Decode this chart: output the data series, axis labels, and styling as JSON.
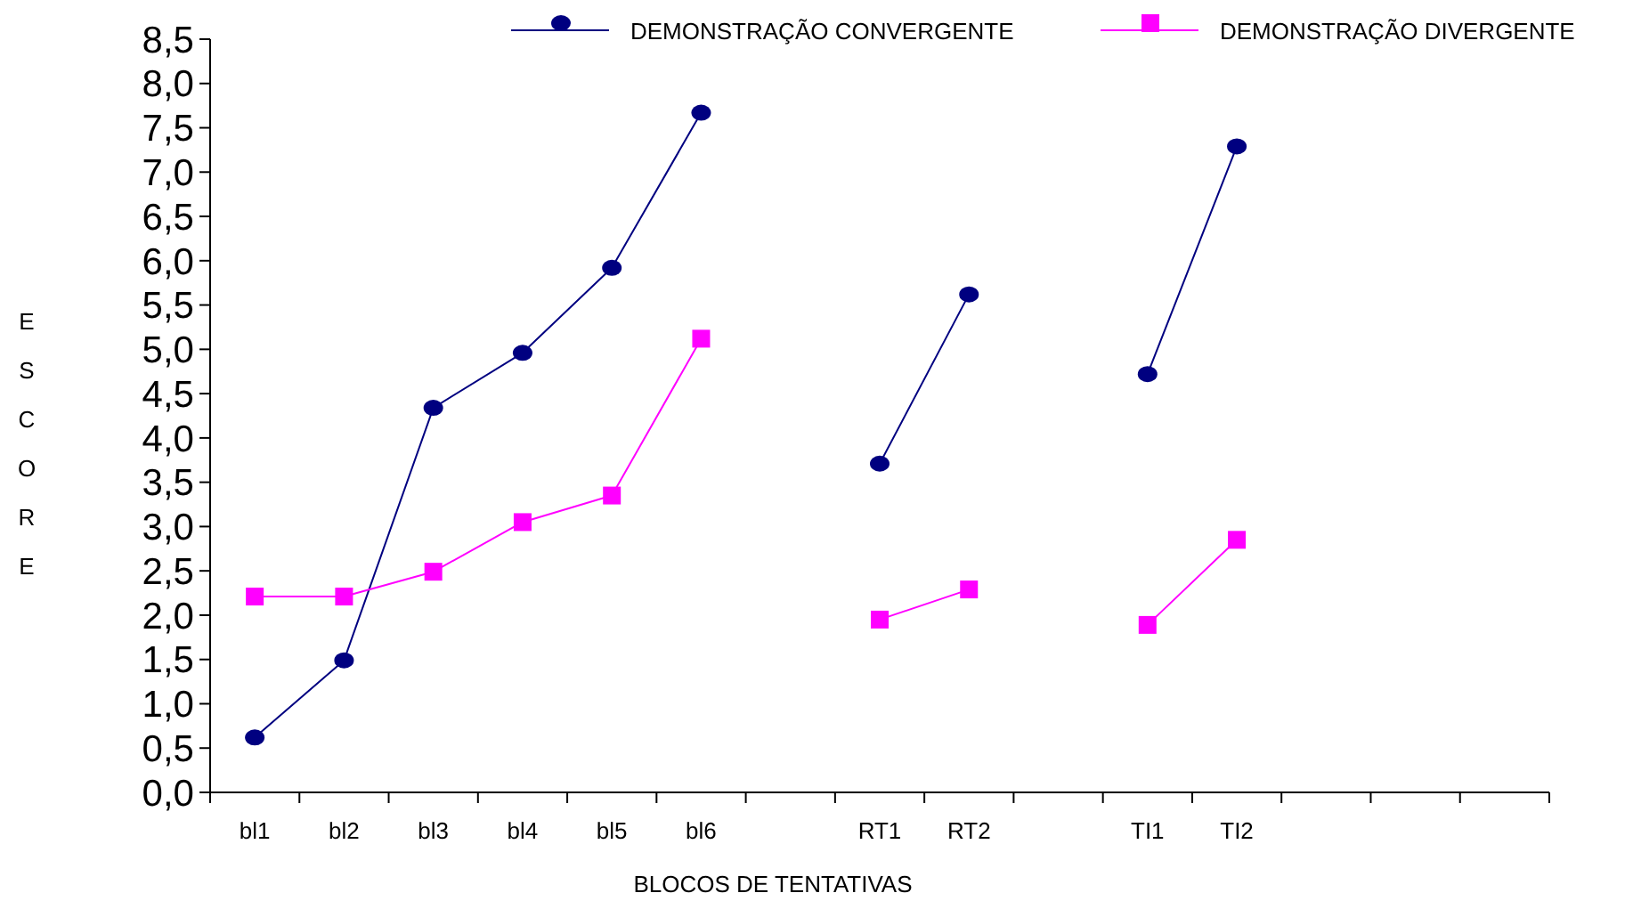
{
  "chart_data": {
    "type": "line",
    "xlabel": "BLOCOS DE TENTATIVAS",
    "ylabel": "ESCORE",
    "categories": [
      "bl1",
      "bl2",
      "bl3",
      "bl4",
      "bl5",
      "bl6",
      null,
      "RT1",
      "RT2",
      null,
      "TI1",
      "TI2",
      null,
      null,
      null
    ],
    "series": [
      {
        "name": "DEMONSTRAÇÃO CONVERGENTE",
        "color": "#000080",
        "marker": "circle",
        "values": [
          0.62,
          1.49,
          4.34,
          4.96,
          5.92,
          7.67,
          null,
          3.71,
          5.62,
          null,
          4.72,
          7.29,
          null,
          null,
          null
        ]
      },
      {
        "name": "DEMONSTRAÇÃO DIVERGENTE",
        "color": "#ff00ff",
        "marker": "square",
        "values": [
          2.21,
          2.21,
          2.49,
          3.05,
          3.35,
          5.12,
          null,
          1.95,
          2.29,
          null,
          1.89,
          2.85,
          null,
          null,
          null
        ]
      }
    ],
    "ylim": [
      0,
      8.5
    ],
    "yticks": [
      {
        "value": 0,
        "label": "0,0"
      },
      {
        "value": 0.5,
        "label": "0,5"
      },
      {
        "value": 1,
        "label": "1,0"
      },
      {
        "value": 1.5,
        "label": "1,5"
      },
      {
        "value": 2,
        "label": "2,0"
      },
      {
        "value": 2.5,
        "label": "2,5"
      },
      {
        "value": 3,
        "label": "3,0"
      },
      {
        "value": 3.5,
        "label": "3,5"
      },
      {
        "value": 4,
        "label": "4,0"
      },
      {
        "value": 4.5,
        "label": "4,5"
      },
      {
        "value": 5,
        "label": "5,0"
      },
      {
        "value": 5.5,
        "label": "5,5"
      },
      {
        "value": 6,
        "label": "6,0"
      },
      {
        "value": 6.5,
        "label": "6,5"
      },
      {
        "value": 7,
        "label": "7,0"
      },
      {
        "value": 7.5,
        "label": "7,5"
      },
      {
        "value": 8,
        "label": "8,0"
      },
      {
        "value": 8.5,
        "label": "8,5"
      }
    ],
    "grid": false,
    "legend": "top right"
  }
}
